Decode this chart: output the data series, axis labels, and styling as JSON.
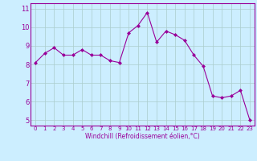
{
  "x": [
    0,
    1,
    2,
    3,
    4,
    5,
    6,
    7,
    8,
    9,
    10,
    11,
    12,
    13,
    14,
    15,
    16,
    17,
    18,
    19,
    20,
    21,
    22,
    23
  ],
  "y": [
    8.1,
    8.6,
    8.9,
    8.5,
    8.5,
    8.8,
    8.5,
    8.5,
    8.2,
    8.1,
    9.7,
    10.1,
    10.8,
    9.2,
    9.8,
    9.6,
    9.3,
    8.5,
    7.9,
    6.3,
    6.2,
    6.3,
    6.6,
    5.0
  ],
  "line_color": "#990099",
  "marker": "D",
  "marker_size": 2,
  "bg_color": "#cceeff",
  "grid_color": "#aacccc",
  "xlabel": "Windchill (Refroidissement éolien,°C)",
  "xlabel_color": "#990099",
  "ylabel_ticks": [
    5,
    6,
    7,
    8,
    9,
    10,
    11
  ],
  "xtick_labels": [
    "0",
    "1",
    "2",
    "3",
    "4",
    "5",
    "6",
    "7",
    "8",
    "9",
    "10",
    "11",
    "12",
    "13",
    "14",
    "15",
    "16",
    "17",
    "18",
    "19",
    "20",
    "21",
    "22",
    "23"
  ],
  "ylim": [
    4.7,
    11.3
  ],
  "xlim": [
    -0.5,
    23.5
  ],
  "tick_color": "#990099",
  "spine_color": "#990099"
}
